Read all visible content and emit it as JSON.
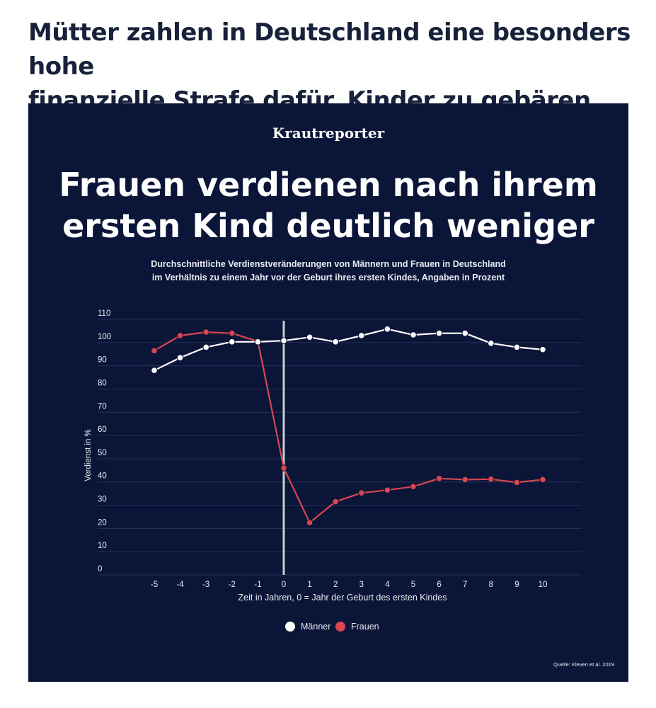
{
  "headline": {
    "line1": "Mütter zahlen in Deutschland eine besonders hohe",
    "line2": "finanzielle Strafe dafür, Kinder zu gebären"
  },
  "graphic": {
    "logo": "Krautreporter",
    "title_line1": "Frauen verdienen nach ihrem",
    "title_line2": "ersten Kind deutlich weniger",
    "subtitle_line1": "Durchschnittliche Verdienstveränderungen von Männern und Frauen in Deutschland",
    "subtitle_line2": "im Verhältnis zu einem Jahr vor der Geburt ihres ersten Kindes, Angaben in Prozent",
    "source": "Quelle: Kleven et al. 2019"
  },
  "chart_data": {
    "type": "line",
    "x": [
      -5,
      -4,
      -3,
      -2,
      -1,
      0,
      1,
      2,
      3,
      4,
      5,
      6,
      7,
      8,
      9,
      10
    ],
    "series": [
      {
        "name": "Männer",
        "color": "#ffffff",
        "values": [
          88,
          93.5,
          98,
          100.3,
          100.3,
          100.8,
          102.3,
          100.3,
          103,
          105.8,
          103.3,
          104,
          104,
          99.7,
          98,
          97
        ]
      },
      {
        "name": "Frauen",
        "color": "#d9464f",
        "values": [
          96.5,
          103,
          104.5,
          104,
          100.5,
          46,
          22.5,
          31.5,
          35.3,
          36.5,
          38,
          41.5,
          41,
          41.2,
          39.8,
          41
        ]
      }
    ],
    "yticks": [
      0,
      10,
      20,
      30,
      40,
      50,
      60,
      70,
      80,
      90,
      100,
      110
    ],
    "ylim": [
      0,
      110
    ],
    "xlabel": "Zeit in Jahren, 0 = Jahr der Geburt des ersten Kindes",
    "ylabel": "Verdienst in %",
    "highlight_x": 0,
    "highlight_color": "#c9c9d4",
    "gridline_color": "#26305a",
    "legend": [
      "Männer",
      "Frauen"
    ]
  }
}
